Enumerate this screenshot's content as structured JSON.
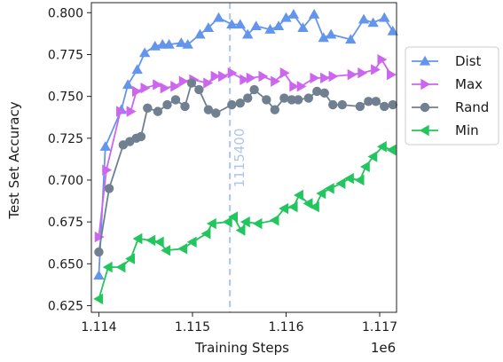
{
  "chart_data": {
    "type": "line",
    "xlabel": "Training Steps",
    "ylabel": "Test Set Accuracy",
    "x_offset_label": "1e6",
    "xlim": [
      1113920,
      1117180
    ],
    "ylim": [
      0.621,
      0.806
    ],
    "x_tick_values": [
      1114000,
      1115000,
      1116000,
      1117000
    ],
    "x_tick_labels": [
      "1.114",
      "1.115",
      "1.116",
      "1.117"
    ],
    "y_tick_values": [
      0.625,
      0.65,
      0.675,
      0.7,
      0.725,
      0.75,
      0.775,
      0.8
    ],
    "y_tick_labels": [
      "0.625",
      "0.650",
      "0.675",
      "0.700",
      "0.725",
      "0.750",
      "0.775",
      "0.800"
    ],
    "grid": false,
    "legend_position": "right",
    "vline": {
      "x": 1115400,
      "label": "1115400",
      "color": "#aec7e8"
    },
    "series": [
      {
        "name": "Dist",
        "color": "#6495ED",
        "marker": "triangle-up",
        "x": [
          1114000,
          1114070,
          1114240,
          1114310,
          1114410,
          1114490,
          1114600,
          1114680,
          1114750,
          1114880,
          1114950,
          1115080,
          1115170,
          1115280,
          1115420,
          1115510,
          1115590,
          1115680,
          1115830,
          1115920,
          1116000,
          1116080,
          1116180,
          1116300,
          1116400,
          1116480,
          1116690,
          1116830,
          1116930,
          1117050,
          1117140
        ],
        "y": [
          0.643,
          0.72,
          0.742,
          0.757,
          0.766,
          0.776,
          0.78,
          0.781,
          0.781,
          0.782,
          0.781,
          0.787,
          0.791,
          0.797,
          0.793,
          0.793,
          0.787,
          0.792,
          0.79,
          0.792,
          0.797,
          0.799,
          0.791,
          0.799,
          0.785,
          0.787,
          0.784,
          0.796,
          0.794,
          0.797,
          0.789
        ]
      },
      {
        "name": "Max",
        "color": "#CC66EE",
        "marker": "triangle-right",
        "x": [
          1114000,
          1114080,
          1114230,
          1114340,
          1114400,
          1114490,
          1114620,
          1114700,
          1114810,
          1114900,
          1115010,
          1115160,
          1115240,
          1115320,
          1115420,
          1115550,
          1115620,
          1115750,
          1115880,
          1115980,
          1116080,
          1116160,
          1116300,
          1116410,
          1116500,
          1116700,
          1116810,
          1116950,
          1117020,
          1117120
        ],
        "y": [
          0.666,
          0.706,
          0.741,
          0.741,
          0.753,
          0.755,
          0.757,
          0.755,
          0.756,
          0.759,
          0.76,
          0.758,
          0.762,
          0.762,
          0.764,
          0.76,
          0.761,
          0.762,
          0.759,
          0.764,
          0.756,
          0.756,
          0.761,
          0.761,
          0.762,
          0.763,
          0.764,
          0.766,
          0.772,
          0.763
        ]
      },
      {
        "name": "Rand",
        "color": "#708090",
        "marker": "circle",
        "x": [
          1114000,
          1114110,
          1114260,
          1114330,
          1114400,
          1114450,
          1114520,
          1114630,
          1114730,
          1114820,
          1114920,
          1114990,
          1115070,
          1115170,
          1115250,
          1115420,
          1115510,
          1115590,
          1115660,
          1115790,
          1115880,
          1115980,
          1116060,
          1116130,
          1116240,
          1116330,
          1116410,
          1116500,
          1116600,
          1116790,
          1116880,
          1116960,
          1117050,
          1117140
        ],
        "y": [
          0.657,
          0.695,
          0.721,
          0.723,
          0.725,
          0.726,
          0.743,
          0.741,
          0.745,
          0.748,
          0.744,
          0.758,
          0.754,
          0.742,
          0.74,
          0.745,
          0.746,
          0.749,
          0.754,
          0.748,
          0.742,
          0.749,
          0.748,
          0.748,
          0.749,
          0.753,
          0.752,
          0.745,
          0.745,
          0.744,
          0.747,
          0.747,
          0.744,
          0.745
        ]
      },
      {
        "name": "Min",
        "color": "#22C55E",
        "marker": "triangle-left",
        "x": [
          1114000,
          1114100,
          1114240,
          1114340,
          1114420,
          1114560,
          1114650,
          1114720,
          1114900,
          1115000,
          1115150,
          1115210,
          1115380,
          1115440,
          1115520,
          1115570,
          1115700,
          1115880,
          1115980,
          1116080,
          1116140,
          1116240,
          1116310,
          1116380,
          1116470,
          1116590,
          1116680,
          1116790,
          1116850,
          1116930,
          1117030,
          1117130
        ],
        "y": [
          0.629,
          0.648,
          0.648,
          0.653,
          0.665,
          0.664,
          0.663,
          0.658,
          0.659,
          0.663,
          0.668,
          0.674,
          0.675,
          0.678,
          0.67,
          0.675,
          0.674,
          0.676,
          0.683,
          0.684,
          0.691,
          0.686,
          0.684,
          0.692,
          0.695,
          0.698,
          0.701,
          0.7,
          0.708,
          0.714,
          0.72,
          0.718
        ]
      }
    ]
  }
}
